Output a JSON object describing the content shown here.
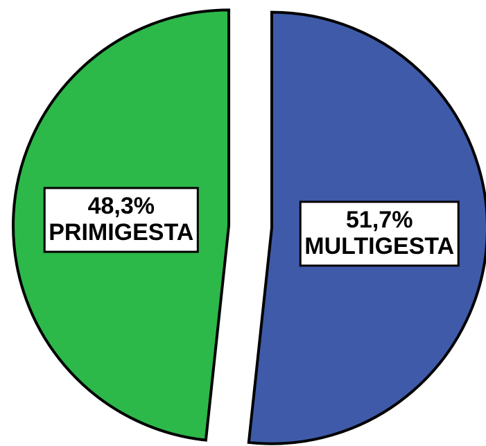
{
  "chart_data": {
    "type": "pie",
    "categories": [
      "MULTIGESTA",
      "PRIMIGESTA"
    ],
    "values": [
      51.7,
      48.3
    ],
    "value_labels": [
      "51,7%",
      "48,3%"
    ],
    "colors": [
      "#3f5aa8",
      "#2db84a"
    ]
  }
}
